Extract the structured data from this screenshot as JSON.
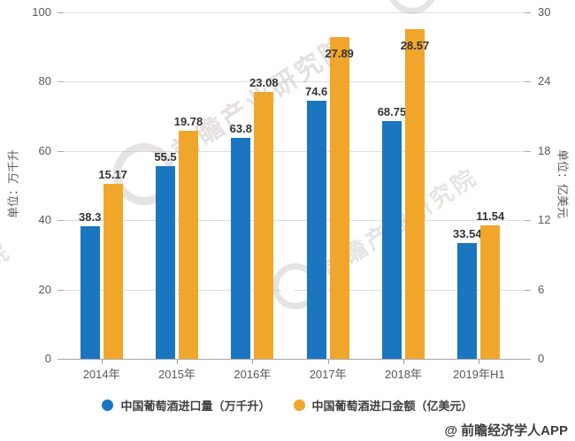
{
  "left_axis": {
    "title": "单位：万千升",
    "ticks": [
      "100",
      "80",
      "60",
      "40",
      "20",
      "0"
    ]
  },
  "right_axis": {
    "title": "单位：亿美元",
    "ticks": [
      "30",
      "24",
      "18",
      "12",
      "6",
      "0"
    ]
  },
  "chart_data": {
    "type": "bar",
    "categories": [
      "2014年",
      "2015年",
      "2016年",
      "2017年",
      "2018年",
      "2019年H1"
    ],
    "series": [
      {
        "name": "中国葡萄酒进口量（万千升）",
        "axis": "left",
        "color": "#1B76C0",
        "values": [
          38.3,
          55.5,
          63.8,
          74.6,
          68.75,
          33.54
        ]
      },
      {
        "name": "中国葡萄酒进口金额（亿美元）",
        "axis": "right",
        "color": "#F0A62B",
        "values": [
          15.17,
          19.78,
          23.08,
          27.89,
          28.57,
          11.54
        ]
      }
    ],
    "left_ylim": [
      0,
      100
    ],
    "right_ylim": [
      0,
      30
    ],
    "grid": true,
    "legend_position": "bottom",
    "title": ""
  },
  "watermark": {
    "brand_text": "前瞻产业研究院"
  },
  "attribution": "@ 前瞻经济学人APP"
}
